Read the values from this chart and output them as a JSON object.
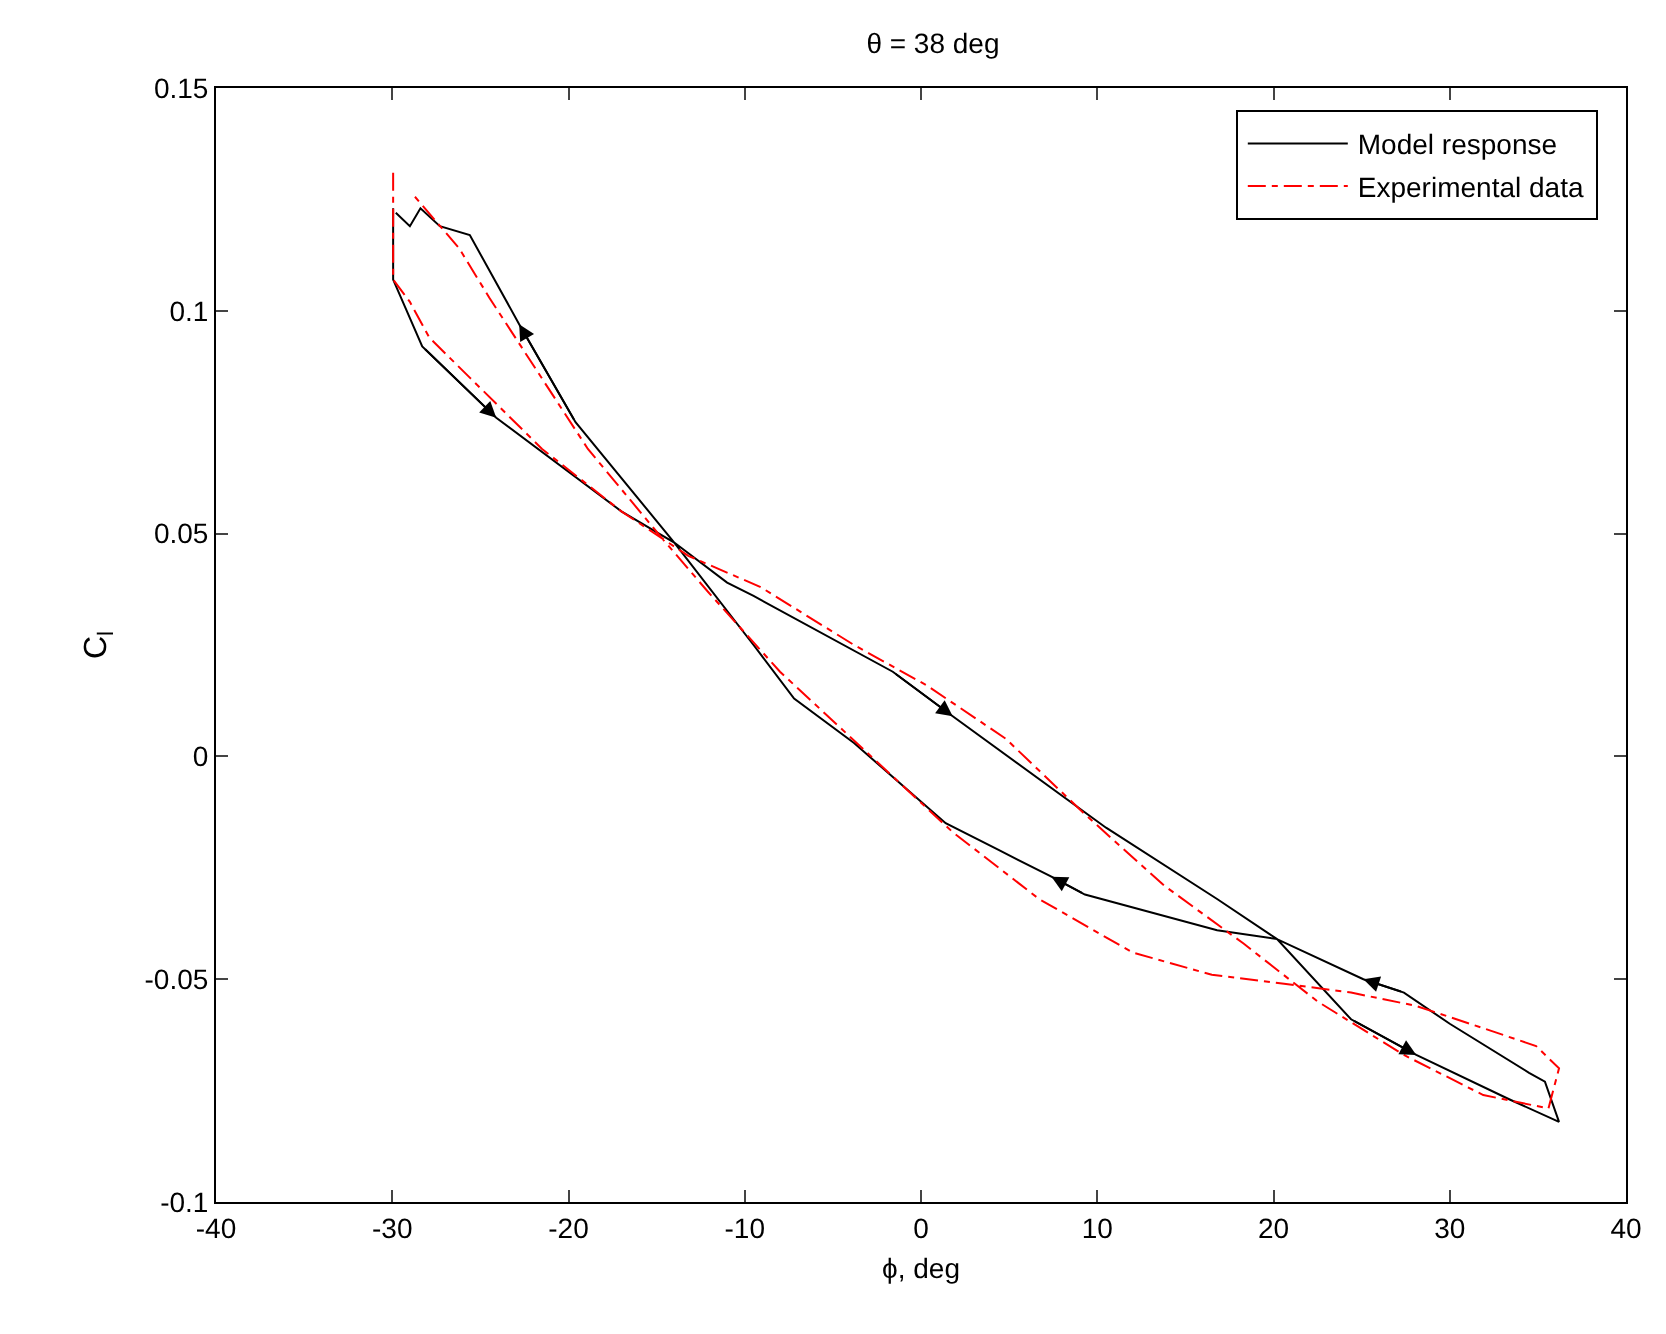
{
  "chart_data": {
    "type": "line",
    "title": "θ = 38 deg",
    "xlabel": "ϕ, deg",
    "ylabel": "C$_{l}$",
    "xlim": [
      -40,
      40
    ],
    "xticks": [
      -40,
      -30,
      -20,
      -10,
      0,
      10,
      20,
      30,
      40
    ],
    "ylim": [
      -0.1,
      0.15
    ],
    "yticks": [
      -0.1,
      -0.05,
      0,
      0.05,
      0.1,
      0.15
    ],
    "grid": false,
    "legend": "top right",
    "marker": "none",
    "series": [
      {
        "name": "Model response",
        "color": "#000000",
        "line_style": "solid",
        "x": [
          -29.95,
          -29.95,
          -28.3,
          -24.1,
          -17.0,
          -14.0,
          -11.0,
          -9.5,
          -1.6,
          1.8,
          10.5,
          16.8,
          20.2,
          24.4,
          28.1,
          33.4,
          36.2,
          35.4,
          34.5,
          30.0,
          27.4,
          25.1,
          20.2,
          16.8,
          9.3,
          7.4,
          4.4,
          1.4,
          -3.8,
          -7.2,
          -9.5,
          -14.0,
          -19.6,
          -22.8,
          -25.6,
          -27.3,
          -28.4,
          -29.0,
          -29.8
        ],
        "values": [
          0.123,
          0.107,
          0.092,
          0.076,
          0.055,
          0.048,
          0.039,
          0.036,
          0.019,
          0.009,
          -0.016,
          -0.032,
          -0.041,
          -0.059,
          -0.067,
          -0.077,
          -0.082,
          -0.073,
          -0.071,
          -0.06,
          -0.053,
          -0.05,
          -0.041,
          -0.039,
          -0.031,
          -0.027,
          -0.021,
          -0.015,
          0.003,
          0.013,
          0.025,
          0.048,
          0.075,
          0.097,
          0.117,
          0.119,
          0.123,
          0.119,
          0.122
        ]
      },
      {
        "name": "Experimental data",
        "color": "#ff0000",
        "line_style": "dashed",
        "x": [
          -29.95,
          -29.95,
          -29.0,
          -27.9,
          -25.6,
          -21.5,
          -17.0,
          -13.2,
          -9.1,
          -3.8,
          0.3,
          4.8,
          9.3,
          13.8,
          18.3,
          22.5,
          27.4,
          31.9,
          35.6,
          36.2,
          34.9,
          31.9,
          28.1,
          24.4,
          20.6,
          16.5,
          12.0,
          6.7,
          1.8,
          -3.1,
          -8.0,
          -12.1,
          -14.7,
          -18.9,
          -24.5,
          -26.2,
          -27.5,
          -28.8
        ],
        "values": [
          0.131,
          0.107,
          0.102,
          0.094,
          0.085,
          0.069,
          0.055,
          0.045,
          0.038,
          0.025,
          0.016,
          0.004,
          -0.013,
          -0.029,
          -0.042,
          -0.055,
          -0.067,
          -0.076,
          -0.079,
          -0.07,
          -0.065,
          -0.061,
          -0.056,
          -0.053,
          -0.051,
          -0.049,
          -0.044,
          -0.032,
          -0.017,
          0.001,
          0.019,
          0.037,
          0.049,
          0.069,
          0.103,
          0.114,
          0.12,
          0.126
        ]
      }
    ]
  }
}
